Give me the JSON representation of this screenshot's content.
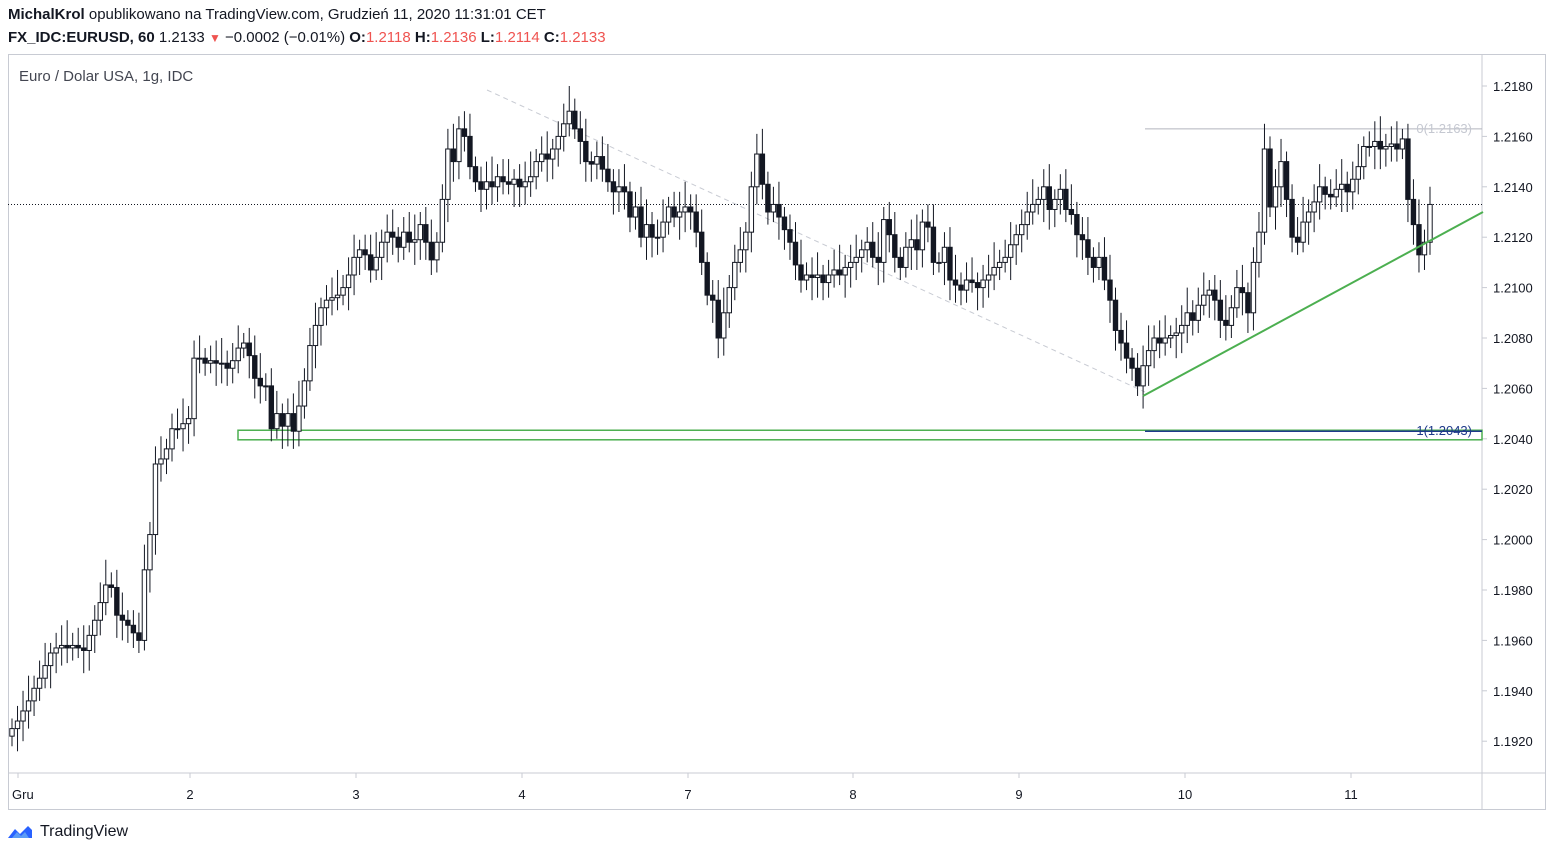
{
  "header": {
    "author": "MichalKrol",
    "published": "opublikowano na TradingView.com, Grudzień 11, 2020 11:31:01 CET",
    "symbol": "FX_IDC:EURUSD, 60",
    "price": "1.2133",
    "change": "−0.0002 (−0.01%)",
    "o_label": "O:",
    "o_value": "1.2118",
    "h_label": "H:",
    "h_value": "1.2136",
    "l_label": "L:",
    "l_value": "1.2114",
    "c_label": "C:",
    "c_value": "1.2133"
  },
  "series_title": "Euro / Dolar USA, 1g, IDC",
  "footer": {
    "brand": "TradingView"
  },
  "colors": {
    "accent": "#2962ff",
    "down": "#ef5350",
    "support_zone": "#4caf50",
    "trendline": "#4caf50",
    "fib_line": "#1e3a8a",
    "candle_body": "#131722"
  },
  "chart_data": {
    "type": "candlestick",
    "y_ticks": [
      "1.2180",
      "1.2160",
      "1.2140",
      "1.2120",
      "1.2100",
      "1.2080",
      "1.2060",
      "1.2040",
      "1.2020",
      "1.2000",
      "1.1980",
      "1.1960",
      "1.1940",
      "1.1920"
    ],
    "ylim": [
      1.191,
      1.219
    ],
    "x_ticks": [
      "Gru",
      "2",
      "3",
      "4",
      "7",
      "8",
      "9",
      "10",
      "11"
    ],
    "current_price_line": 1.2133,
    "fib_levels": [
      {
        "label": "0(1.2163)",
        "value": 1.2163
      },
      {
        "label": "1(1.2043)",
        "value": 1.2043
      }
    ],
    "support_zone": [
      1.204,
      1.2043
    ],
    "grid": false,
    "closes": [
      1.1925,
      1.1928,
      1.1932,
      1.1936,
      1.1941,
      1.1945,
      1.195,
      1.1955,
      1.1957,
      1.1958,
      1.1957,
      1.1958,
      1.1957,
      1.1956,
      1.1962,
      1.1968,
      1.1975,
      1.1982,
      1.1981,
      1.197,
      1.1968,
      1.1966,
      1.1963,
      1.196,
      1.1988,
      1.2002,
      1.203,
      1.2032,
      1.2036,
      1.2044,
      1.2044,
      1.2046,
      1.2048,
      1.2072,
      1.2072,
      1.207,
      1.2071,
      1.207,
      1.207,
      1.2068,
      1.2071,
      1.2076,
      1.2078,
      1.2073,
      1.2064,
      1.2061,
      1.2061,
      1.2044,
      1.205,
      1.2045,
      1.205,
      1.2043,
      1.2053,
      1.2063,
      1.2077,
      1.2085,
      1.2092,
      1.2095,
      1.2096,
      1.2097,
      1.21,
      1.2105,
      1.2112,
      1.2115,
      1.2113,
      1.2107,
      1.2112,
      1.2118,
      1.2122,
      1.212,
      1.2116,
      1.2122,
      1.2118,
      1.2119,
      1.2125,
      1.2118,
      1.2111,
      1.2118,
      1.2135,
      1.2155,
      1.215,
      1.2163,
      1.216,
      1.2148,
      1.2142,
      1.2139,
      1.2142,
      1.214,
      1.2144,
      1.2142,
      1.2141,
      1.2143,
      1.214,
      1.2142,
      1.2144,
      1.215,
      1.2153,
      1.2151,
      1.2155,
      1.216,
      1.2165,
      1.217,
      1.2163,
      1.2158,
      1.215,
      1.2149,
      1.2152,
      1.2147,
      1.2142,
      1.2138,
      1.214,
      1.2138,
      1.2128,
      1.2132,
      1.212,
      1.2125,
      1.212,
      1.212,
      1.2126,
      1.2132,
      1.2128,
      1.213,
      1.2132,
      1.213,
      1.2122,
      1.211,
      1.2097,
      1.2095,
      1.208,
      1.209,
      1.21,
      1.211,
      1.2115,
      1.2122,
      1.214,
      1.2153,
      1.2141,
      1.213,
      1.2133,
      1.2128,
      1.2123,
      1.2118,
      1.2109,
      1.2103,
      1.2105,
      1.2104,
      1.2105,
      1.2102,
      1.2105,
      1.2107,
      1.2105,
      1.2108,
      1.211,
      1.2112,
      1.2115,
      1.2118,
      1.2112,
      1.211,
      1.2127,
      1.2121,
      1.2112,
      1.2108,
      1.2116,
      1.2119,
      1.2115,
      1.2126,
      1.2124,
      1.211,
      1.211,
      1.2116,
      1.2103,
      1.2101,
      1.2099,
      1.2103,
      1.2102,
      1.21,
      1.2103,
      1.2105,
      1.2108,
      1.211,
      1.2112,
      1.2117,
      1.2121,
      1.2125,
      1.213,
      1.2133,
      1.2135,
      1.214,
      1.2131,
      1.2135,
      1.2139,
      1.2131,
      1.2129,
      1.2121,
      1.2119,
      1.2112,
      1.2108,
      1.2112,
      1.2103,
      1.2095,
      1.2083,
      1.2078,
      1.2072,
      1.2068,
      1.2061,
      1.2069,
      1.2075,
      1.208,
      1.2078,
      1.208,
      1.2081,
      1.2082,
      1.2085,
      1.209,
      1.2087,
      1.2093,
      1.2097,
      1.2099,
      1.2095,
      1.2087,
      1.2085,
      1.2092,
      1.21,
      1.2098,
      1.209,
      1.211,
      1.2122,
      1.2155,
      1.2132,
      1.214,
      1.215,
      1.2135,
      1.212,
      1.2118,
      1.2126,
      1.213,
      1.2134,
      1.214,
      1.2137,
      1.2136,
      1.2139,
      1.2141,
      1.2138,
      1.2143,
      1.2148,
      1.2156,
      1.2156,
      1.2158,
      1.2155,
      1.2156,
      1.2157,
      1.2155,
      1.2159,
      1.2135,
      1.2125,
      1.2113,
      1.2118,
      1.2133
    ]
  }
}
